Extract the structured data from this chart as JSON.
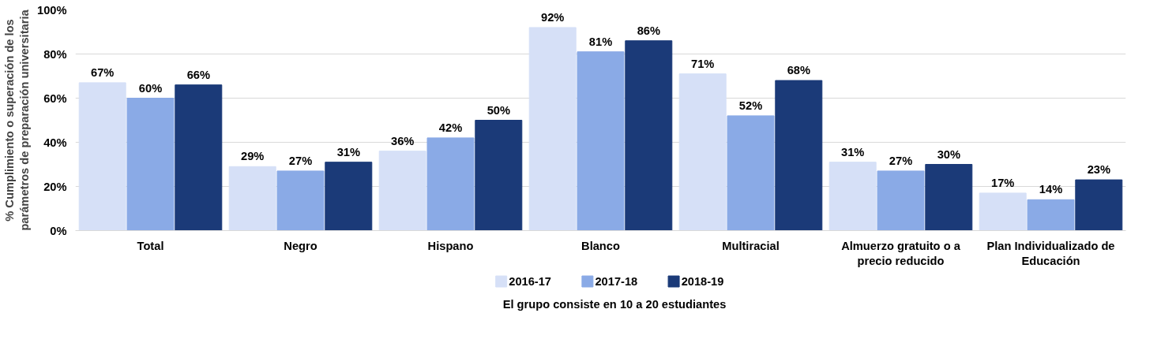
{
  "chart_data": {
    "type": "bar",
    "ylabel": "% Cumplimiento o superación de los parámetros de preparación universitaria",
    "categories": [
      "Total",
      "Negro",
      "Hispano",
      "Blanco",
      "Multiracial",
      "Almuerzo gratuito o a precio reducido",
      "Plan Individualizado de Educación"
    ],
    "series": [
      {
        "name": "2016-17",
        "color": "#d6e0f7",
        "values": [
          67,
          29,
          36,
          92,
          71,
          31,
          17
        ],
        "value_labels": [
          "67%",
          "29%",
          "36%",
          "92%",
          "71%",
          "31%",
          "17%"
        ]
      },
      {
        "name": "2017-18",
        "color": "#8aaae6",
        "values": [
          60,
          27,
          42,
          81,
          52,
          27,
          14
        ],
        "value_labels": [
          "60%",
          "27%",
          "42%",
          "81%",
          "52%",
          "27%",
          "14%"
        ]
      },
      {
        "name": "2018-19",
        "color": "#1b3a78",
        "values": [
          66,
          31,
          50,
          86,
          68,
          30,
          23
        ],
        "value_labels": [
          "66%",
          "31%",
          "50%",
          "86%",
          "68%",
          "30%",
          "23%"
        ]
      }
    ],
    "ylim": [
      0,
      100
    ],
    "yticks": [
      {
        "value": 0,
        "label": "0%"
      },
      {
        "value": 20,
        "label": "20%"
      },
      {
        "value": 40,
        "label": "40%"
      },
      {
        "value": 60,
        "label": "60%"
      },
      {
        "value": 80,
        "label": "80%"
      },
      {
        "value": 100,
        "label": "100%"
      }
    ],
    "grid": "y",
    "legend": "bottom",
    "annotations": [
      "El grupo consiste en 10 a 20 estudiantes"
    ]
  }
}
